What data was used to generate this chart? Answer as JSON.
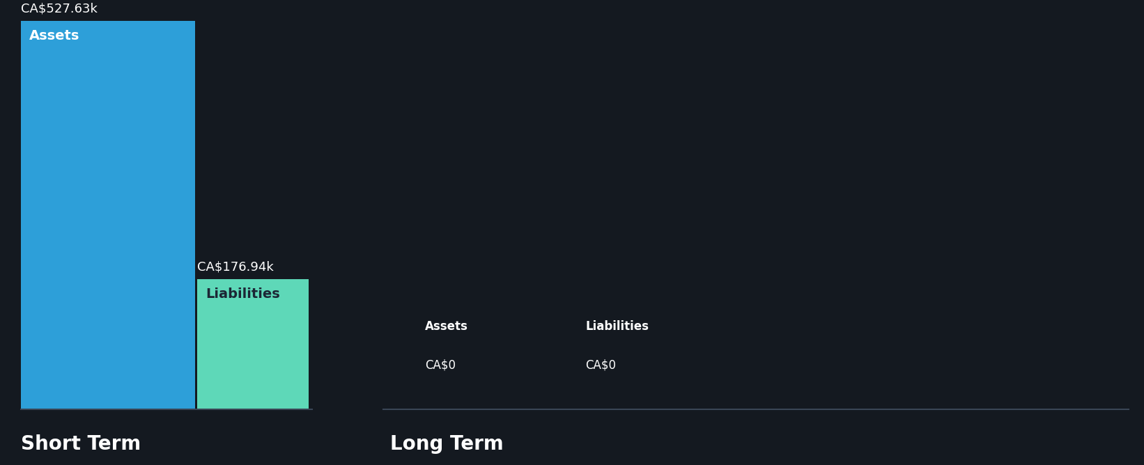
{
  "background_color": "#141920",
  "short_term": {
    "assets_value": 527630,
    "liabilities_value": 176940,
    "assets_label": "Assets",
    "liabilities_label": "Liabilities",
    "assets_display": "CA$527.63k",
    "liabilities_display": "CA$176.94k",
    "assets_color": "#2d9fd9",
    "liabilities_color": "#5ed8b8",
    "section_label": "Short Term"
  },
  "long_term": {
    "assets_value": 0,
    "liabilities_value": 0,
    "assets_label": "Assets",
    "liabilities_label": "Liabilities",
    "assets_display": "CA$0",
    "liabilities_display": "CA$0",
    "section_label": "Long Term"
  },
  "max_value": 527630,
  "text_color": "#ffffff",
  "label_color_dark": "#1c2635",
  "divider_color": "#3a4555"
}
